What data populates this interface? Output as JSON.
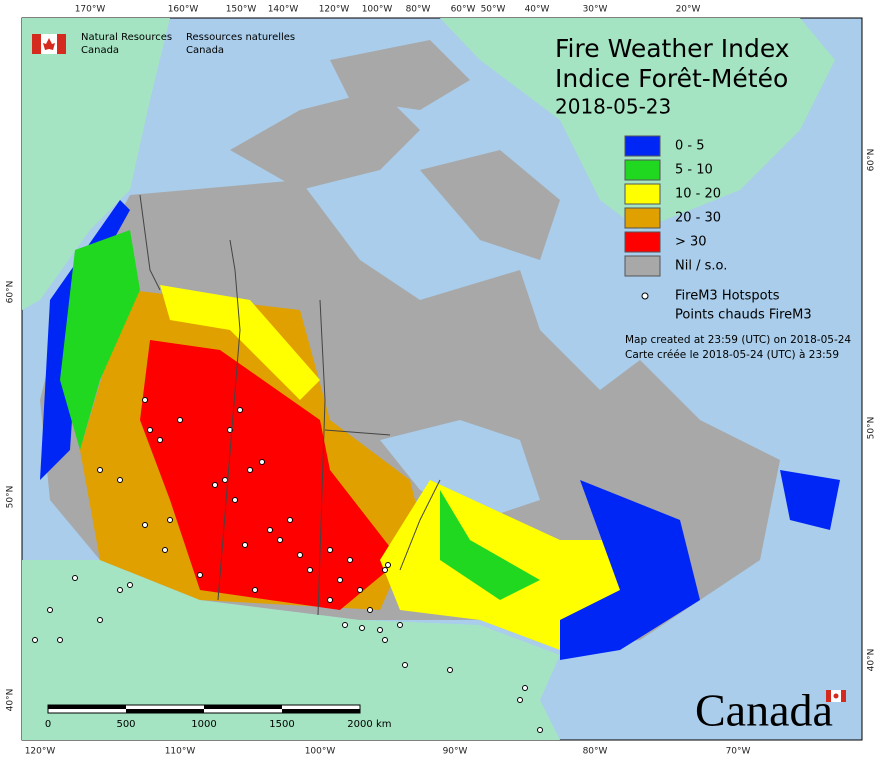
{
  "header": {
    "agency_en": [
      "Natural Resources",
      "Canada"
    ],
    "agency_fr": [
      "Ressources naturelles",
      "Canada"
    ]
  },
  "title": {
    "line1": "Fire Weather Index",
    "line2": "Indice Forêt-Météo",
    "date": "2018-05-23"
  },
  "legend": {
    "items": [
      {
        "label": "0 - 5",
        "color": "#0026f5"
      },
      {
        "label": "5 - 10",
        "color": "#20d820"
      },
      {
        "label": "10 - 20",
        "color": "#ffff00"
      },
      {
        "label": "20 - 30",
        "color": "#e0a000"
      },
      {
        "label": "> 30",
        "color": "#ff0000"
      },
      {
        "label": "Nil / s.o.",
        "color": "#a8a8a8"
      }
    ],
    "hotspots": [
      "FireM3 Hotspots",
      "Points chauds FireM3"
    ],
    "notes": [
      "Map created at 23:59 (UTC) on 2018-05-24",
      "Carte créée le 2018-05-24 (UTC) à 23:59"
    ]
  },
  "graticule": {
    "top": [
      "170°W",
      "160°W",
      "150°W",
      "140°W",
      "120°W",
      "100°W",
      "80°W",
      "60°W",
      "50°W",
      "40°W",
      "30°W",
      "20°W"
    ],
    "bottom": [
      "120°W",
      "110°W",
      "100°W",
      "90°W",
      "80°W",
      "70°W"
    ],
    "left": [
      "60°N",
      "50°N",
      "40°N"
    ],
    "right": [
      "60°N",
      "50°N",
      "40°N"
    ]
  },
  "scale_bar": {
    "labels": [
      "0",
      "500",
      "1000",
      "1500",
      "2000"
    ],
    "unit": "km"
  },
  "wordmark": "Canada"
}
